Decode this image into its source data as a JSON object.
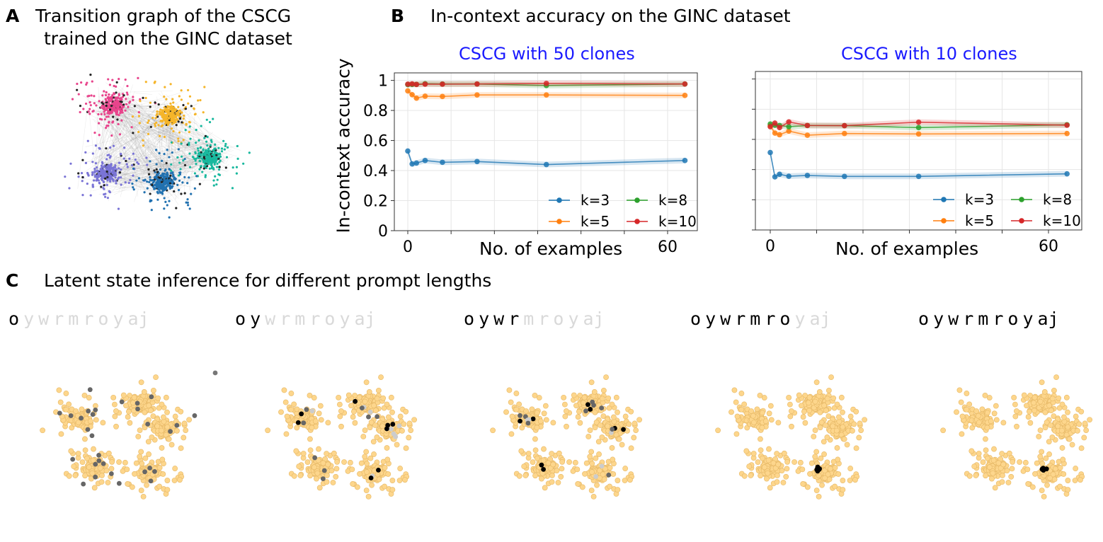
{
  "panel_a": {
    "letter": "A",
    "title_line1": "Transition graph of the CSCG",
    "title_line2": "trained on the GINC dataset",
    "cluster_colors": [
      "#e8458c",
      "#f5b52a",
      "#19b89e",
      "#7a74d6",
      "#2171b0"
    ]
  },
  "panel_b": {
    "letter": "B",
    "title": "In-context accuracy on the GINC dataset"
  },
  "panel_c": {
    "letter": "C",
    "title": "Latent state inference for different prompt lengths",
    "tokens": [
      "o",
      "y",
      "w",
      "r",
      "m",
      "r",
      "o",
      "y",
      "aj"
    ],
    "revealed_counts": [
      1,
      2,
      4,
      7,
      9
    ],
    "node_color": "#fdd68c",
    "active_color": "#000000",
    "inactive_token_color": "#d9d9d9"
  },
  "chart_data": [
    {
      "type": "line",
      "title": "CSCG with 50 clones",
      "xlabel": "No. of examples",
      "ylabel": "In-context accuracy",
      "x": [
        0,
        1,
        2,
        4,
        8,
        16,
        32,
        64
      ],
      "xticks": [
        "0",
        "60"
      ],
      "xtick_values": [
        0,
        60
      ],
      "yticks": [
        "0",
        "0.2",
        "0.4",
        "0.6",
        "0.8",
        "1"
      ],
      "ylim": [
        0,
        1.05
      ],
      "grid": true,
      "legend": "bottom-right",
      "series": [
        {
          "name": "k=3",
          "color": "#1f77b4",
          "values": [
            0.53,
            0.444,
            0.45,
            0.467,
            0.455,
            0.46,
            0.44,
            0.467
          ]
        },
        {
          "name": "k=5",
          "color": "#ff7f0e",
          "values": [
            0.93,
            0.905,
            0.882,
            0.895,
            0.893,
            0.903,
            0.903,
            0.9
          ]
        },
        {
          "name": "k=8",
          "color": "#2ca02c",
          "values": [
            0.972,
            0.973,
            0.974,
            0.978,
            0.976,
            0.976,
            0.966,
            0.976
          ]
        },
        {
          "name": "k=10",
          "color": "#d62728",
          "values": [
            0.975,
            0.977,
            0.973,
            0.975,
            0.975,
            0.976,
            0.98,
            0.976
          ]
        }
      ]
    },
    {
      "type": "line",
      "title": "CSCG with 10 clones",
      "xlabel": "No. of examples",
      "ylabel": "",
      "x": [
        0,
        1,
        2,
        4,
        8,
        16,
        32,
        64
      ],
      "xticks": [
        "0",
        "60"
      ],
      "xtick_values": [
        0,
        60
      ],
      "yticks": [],
      "ylim": [
        0,
        1.05
      ],
      "grid": true,
      "legend": "bottom-right",
      "series": [
        {
          "name": "k=3",
          "color": "#1f77b4",
          "values": [
            0.513,
            0.352,
            0.369,
            0.356,
            0.361,
            0.355,
            0.355,
            0.372
          ]
        },
        {
          "name": "k=5",
          "color": "#ff7f0e",
          "values": [
            0.69,
            0.642,
            0.631,
            0.655,
            0.628,
            0.639,
            0.636,
            0.639
          ]
        },
        {
          "name": "k=8",
          "color": "#2ca02c",
          "values": [
            0.702,
            0.694,
            0.692,
            0.684,
            0.692,
            0.691,
            0.678,
            0.697
          ]
        },
        {
          "name": "k=10",
          "color": "#d62728",
          "values": [
            0.684,
            0.708,
            0.678,
            0.716,
            0.692,
            0.691,
            0.714,
            0.694
          ]
        }
      ]
    }
  ]
}
